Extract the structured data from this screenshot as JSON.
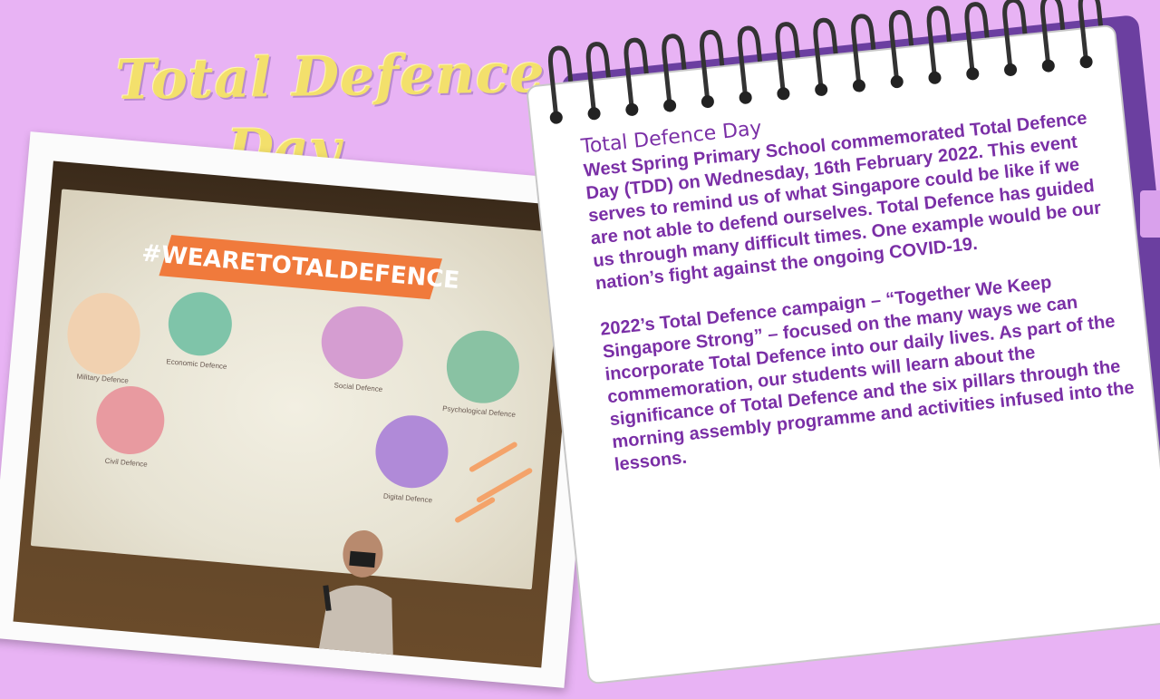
{
  "title": {
    "line1": "Total Defence",
    "line2": "Day"
  },
  "photo": {
    "hashtag": "#WEARETOTALDEFENCE",
    "pillars": [
      {
        "label": "Military Defence",
        "color": "#e9a574"
      },
      {
        "label": "Economic Defence",
        "color": "#7fc4a9"
      },
      {
        "label": "Civil Defence",
        "color": "#e89aa0"
      },
      {
        "label": "Social Defence",
        "color": "#d59dd1"
      },
      {
        "label": "Psychological Defence",
        "color": "#89c2a3"
      },
      {
        "label": "Digital Defence",
        "color": "#b08ad8"
      }
    ]
  },
  "notepad": {
    "heading": "Total Defence Day",
    "paragraph1": "West Spring Primary School commemorated Total Defence Day (TDD) on Wednesday, 16th February 2022. This event serves to remind us of what Singapore could be like if we are not able to defend ourselves. Total Defence has guided us through many difficult times. One example would be our nation’s fight against the ongoing COVID-19.",
    "paragraph2": "2022’s Total Defence campaign – “Together We Keep Singapore Strong” – focused on the many ways we can incorporate Total Defence into our daily lives. As part of the commemoration, our students will learn about the significance of Total Defence and the six pillars through the morning assembly programme and activities infused into the lessons."
  },
  "colors": {
    "background": "#e8b3f4",
    "title": "#f3e06c",
    "text": "#7a2fa6",
    "banner": "#f07a3c"
  }
}
